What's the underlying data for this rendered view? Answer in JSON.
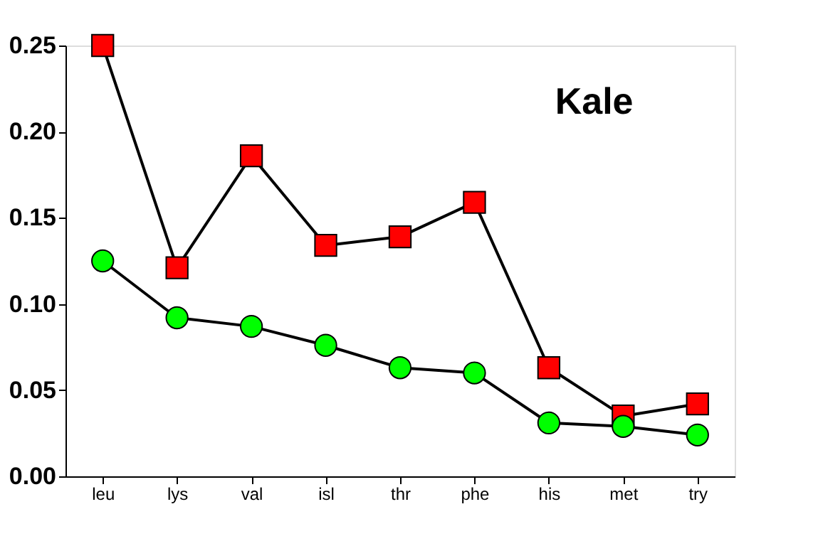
{
  "chart_data": {
    "type": "line",
    "categories": [
      "leu",
      "lys",
      "val",
      "isl",
      "thr",
      "phe",
      "his",
      "met",
      "try"
    ],
    "series": [
      {
        "color": "#ff0000",
        "marker": "square",
        "values": [
          0.25,
          0.121,
          0.186,
          0.134,
          0.139,
          0.159,
          0.063,
          0.035,
          0.042
        ]
      },
      {
        "color": "#00ff00",
        "marker": "circle",
        "values": [
          0.125,
          0.092,
          0.087,
          0.076,
          0.063,
          0.06,
          0.031,
          0.029,
          0.024
        ]
      }
    ],
    "ylim": [
      0,
      0.25
    ],
    "yticks": [
      {
        "value": 0,
        "label": "0.00"
      },
      {
        "value": 0.05,
        "label": "0.05"
      },
      {
        "value": 0.1,
        "label": "0.10"
      },
      {
        "value": 0.15,
        "label": "0.15"
      },
      {
        "value": 0.2,
        "label": "0.20"
      },
      {
        "value": 0.25,
        "label": "0.25"
      }
    ],
    "annotations": [
      "Kale"
    ],
    "grid": false,
    "legend": false
  }
}
